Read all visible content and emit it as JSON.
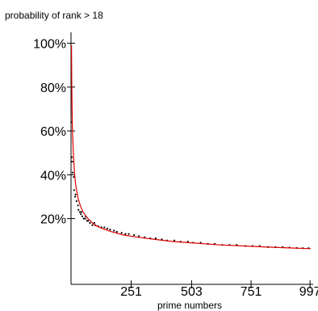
{
  "chart_data": {
    "type": "scatter",
    "title": "probability of rank > 18",
    "xlabel": "prime numbers",
    "ylabel": "",
    "xlim": [
      0,
      1010
    ],
    "ylim": [
      -0.1,
      1.05
    ],
    "x_ticks": [
      251,
      503,
      751,
      997
    ],
    "x_tick_labels": [
      "251",
      "503",
      "751",
      "997"
    ],
    "y_ticks": [
      0.2,
      0.4,
      0.6,
      0.8,
      1.0
    ],
    "y_tick_labels": [
      "20%",
      "40%",
      "60%",
      "80%",
      "100%"
    ],
    "grid": false,
    "legend": "none",
    "series": [
      {
        "kind": "points",
        "color": "#000000",
        "x": [
          2,
          3,
          5,
          7,
          11,
          13,
          17,
          19,
          23,
          29,
          31,
          37,
          41,
          43,
          47,
          53,
          59,
          61,
          67,
          71,
          79,
          89,
          97,
          101,
          113,
          127,
          139,
          151,
          163,
          179,
          191,
          211,
          227,
          241,
          263,
          283,
          307,
          331,
          353,
          379,
          401,
          431,
          457,
          487,
          509,
          541,
          571,
          599,
          631,
          661,
          691,
          727,
          757,
          787,
          821,
          853,
          883,
          911,
          941,
          967,
          991
        ],
        "values": [
          0.64,
          0.48,
          0.46,
          0.41,
          0.39,
          0.33,
          0.3,
          0.31,
          0.28,
          0.26,
          0.24,
          0.23,
          0.22,
          0.23,
          0.21,
          0.2,
          0.2,
          0.21,
          0.19,
          0.19,
          0.18,
          0.17,
          0.18,
          0.17,
          0.165,
          0.16,
          0.16,
          0.155,
          0.15,
          0.145,
          0.14,
          0.135,
          0.13,
          0.13,
          0.125,
          0.12,
          0.115,
          0.11,
          0.11,
          0.105,
          0.1,
          0.1,
          0.095,
          0.095,
          0.09,
          0.09,
          0.085,
          0.085,
          0.08,
          0.08,
          0.08,
          0.075,
          0.075,
          0.075,
          0.07,
          0.07,
          0.07,
          0.068,
          0.066,
          0.065,
          0.065
        ]
      },
      {
        "kind": "line",
        "color": "#dd0000",
        "x": [
          2,
          3,
          5,
          7,
          10,
          15,
          20,
          30,
          40,
          50,
          70,
          100,
          130,
          170,
          220,
          280,
          350,
          430,
          520,
          620,
          720,
          820,
          920,
          1000
        ],
        "values": [
          0.99,
          0.82,
          0.65,
          0.57,
          0.49,
          0.4,
          0.35,
          0.29,
          0.255,
          0.23,
          0.2,
          0.17,
          0.155,
          0.14,
          0.125,
          0.115,
          0.105,
          0.095,
          0.088,
          0.08,
          0.075,
          0.07,
          0.066,
          0.063
        ]
      }
    ]
  }
}
